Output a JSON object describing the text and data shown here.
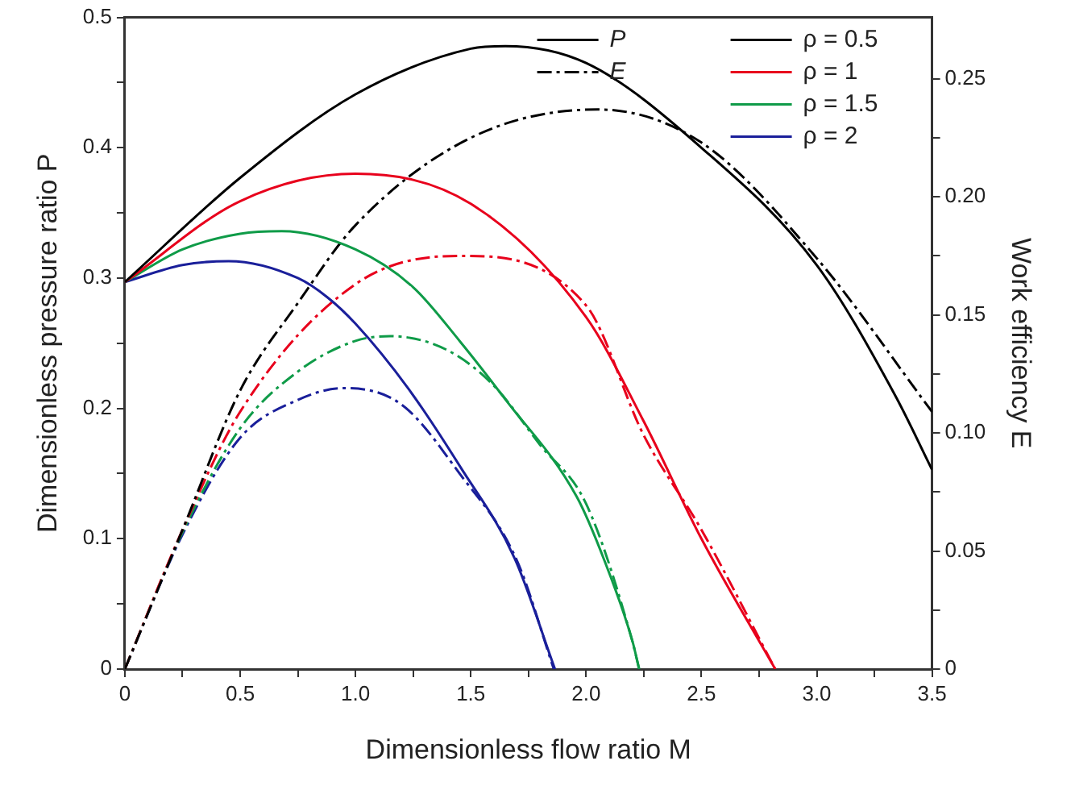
{
  "chart_data": {
    "type": "line",
    "xlabel": "Dimensionless flow ratio M",
    "ylabel": "Dimensionless pressure ratio P",
    "y2label": "Work efficiency E",
    "xlim": [
      0,
      3.5
    ],
    "xticks": [
      0,
      {
        "value": 0.25,
        "label": null
      },
      0.5,
      {
        "value": 0.75,
        "label": null
      },
      {
        "value": 1,
        "label": "1.0"
      },
      {
        "value": 1.25,
        "label": null
      },
      1.5,
      {
        "value": 1.75,
        "label": null
      },
      {
        "value": 2,
        "label": "2.0"
      },
      {
        "value": 2.25,
        "label": null
      },
      2.5,
      {
        "value": 2.75,
        "label": null
      },
      {
        "value": 3,
        "label": "3.0"
      },
      {
        "value": 3.25,
        "label": null
      },
      3.5
    ],
    "ylim": [
      0,
      0.5
    ],
    "yticks": [
      0,
      {
        "value": 0.05,
        "label": null
      },
      0.1,
      {
        "value": 0.15,
        "label": null
      },
      0.2,
      {
        "value": 0.25,
        "label": null
      },
      0.3,
      {
        "value": 0.35,
        "label": null
      },
      0.4,
      {
        "value": 0.45,
        "label": null
      },
      0.5
    ],
    "y2lim": [
      0,
      0.276
    ],
    "y2ticks": [
      0,
      {
        "value": 0.025,
        "label": null
      },
      0.05,
      {
        "value": 0.075,
        "label": null
      },
      {
        "value": 0.1,
        "label": "0.10"
      },
      {
        "value": 0.125,
        "label": null
      },
      0.15,
      {
        "value": 0.175,
        "label": null
      },
      {
        "value": 0.2,
        "label": "0.20"
      },
      {
        "value": 0.225,
        "label": null
      },
      0.25
    ],
    "grid": false,
    "legend": "top right",
    "marker": "none",
    "annotations": [
      "P",
      "E"
    ],
    "series": [
      {
        "name": "ρ = 0.5",
        "color": "#000000",
        "line_style": "solid",
        "x": [
          0,
          0.5,
          1,
          1.5,
          1.65,
          2,
          2.5,
          3,
          3.34,
          3.5
        ],
        "values": [
          0.297,
          0.377,
          0.441,
          0.476,
          0.478,
          0.465,
          0.4,
          0.31,
          0.21,
          0.153
        ]
      },
      {
        "name": "ρ = 1",
        "color": "#e8001c",
        "line_style": "solid",
        "x": [
          0,
          0.5,
          1,
          1.5,
          2,
          2.25,
          2.5,
          2.82
        ],
        "values": [
          0.297,
          0.359,
          0.38,
          0.357,
          0.27,
          0.19,
          0.1,
          0
        ]
      },
      {
        "name": "ρ = 1.5",
        "color": "#0f9b48",
        "line_style": "solid",
        "x": [
          0,
          0.25,
          0.5,
          0.68,
          1,
          1.25,
          1.455,
          1.645,
          1.96,
          2.08,
          2.2,
          2.23
        ],
        "values": [
          0.297,
          0.322,
          0.334,
          0.336,
          0.322,
          0.293,
          0.251,
          0.208,
          0.132,
          0.083,
          0.022,
          0
        ]
      },
      {
        "name": "ρ = 2",
        "color": "#1a1f9a",
        "line_style": "solid",
        "x": [
          0,
          0.25,
          0.45,
          0.75,
          0.88,
          1,
          1.23,
          1.455,
          1.69,
          1.865
        ],
        "values": [
          0.297,
          0.31,
          0.313,
          0.3,
          0.285,
          0.265,
          0.215,
          0.155,
          0.085,
          0
        ]
      },
      {
        "color": "#000000",
        "line_style": "dashdot",
        "axis": "y2",
        "x": [
          0,
          0.25,
          0.5,
          0.75,
          1,
          1.5,
          2.05,
          2.5,
          3,
          3.5
        ],
        "values": [
          0,
          0.059,
          0.118,
          0.155,
          0.188,
          0.225,
          0.237,
          0.223,
          0.174,
          0.109
        ]
      },
      {
        "color": "#e8001c",
        "line_style": "dashdot",
        "axis": "y2",
        "x": [
          0,
          0.25,
          0.5,
          1,
          1.45,
          2,
          2.25,
          2.5,
          2.82
        ],
        "values": [
          0,
          0.059,
          0.109,
          0.163,
          0.175,
          0.154,
          0.099,
          0.059,
          0
        ]
      },
      {
        "color": "#0f9b48",
        "line_style": "dashdot",
        "axis": "y2",
        "x": [
          0,
          0.25,
          0.5,
          0.75,
          1,
          1.15,
          1.4,
          1.6,
          1.8,
          2,
          2.2,
          2.23
        ],
        "values": [
          0,
          0.058,
          0.102,
          0.126,
          0.139,
          0.141,
          0.135,
          0.12,
          0.095,
          0.07,
          0.012,
          0
        ]
      },
      {
        "color": "#1a1f9a",
        "line_style": "dashdot",
        "axis": "y2",
        "x": [
          0,
          0.25,
          0.5,
          0.75,
          0.95,
          1.2,
          1.45,
          1.7,
          1.86
        ],
        "values": [
          0,
          0.057,
          0.098,
          0.114,
          0.119,
          0.112,
          0.083,
          0.046,
          0
        ]
      }
    ]
  }
}
